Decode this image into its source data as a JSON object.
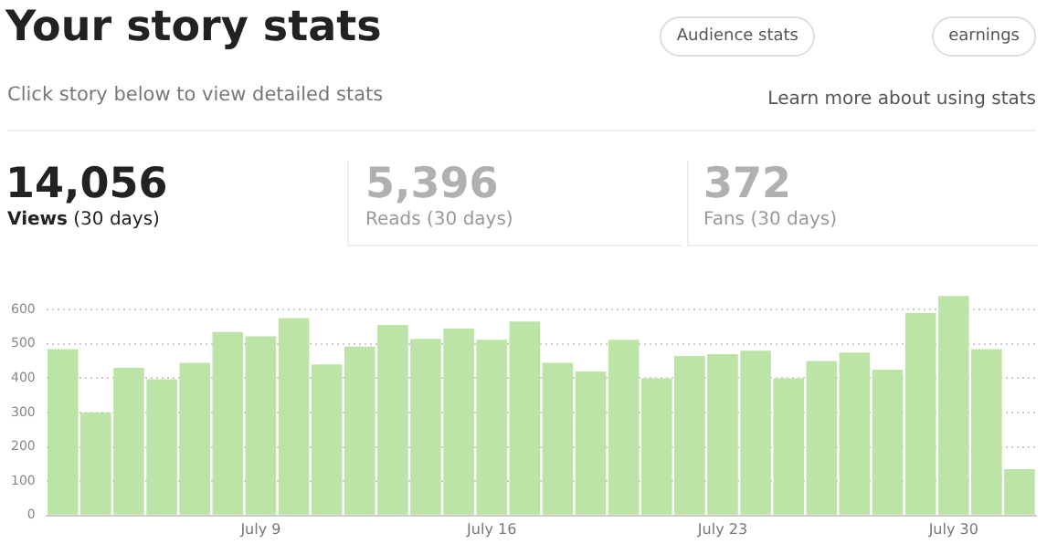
{
  "chart_data": {
    "type": "bar",
    "title": "Your story stats",
    "annotations": [
      "Audience stats",
      "earnings",
      "Click story below to view detailed stats",
      "Learn more about using stats",
      "14,056",
      "Views (30 days)",
      "5,396",
      "Reads (30 days)",
      "372",
      "Fans (30 days)"
    ],
    "categories": [
      null,
      null,
      null,
      null,
      null,
      null,
      "July 9",
      null,
      null,
      null,
      null,
      null,
      null,
      "July 16",
      null,
      null,
      null,
      null,
      null,
      null,
      "July 23",
      null,
      null,
      null,
      null,
      null,
      null,
      "July 30",
      null,
      null
    ],
    "values": [
      485,
      300,
      430,
      397,
      445,
      535,
      522,
      575,
      440,
      492,
      555,
      515,
      545,
      512,
      565,
      445,
      420,
      512,
      400,
      465,
      470,
      480,
      400,
      450,
      475,
      425,
      590,
      640,
      485,
      135
    ],
    "color": "#bde4a7",
    "ylim": [
      0,
      650
    ],
    "yticks": [
      0,
      100,
      200,
      300,
      400,
      500,
      600
    ],
    "grid": "y",
    "legend": false
  }
}
